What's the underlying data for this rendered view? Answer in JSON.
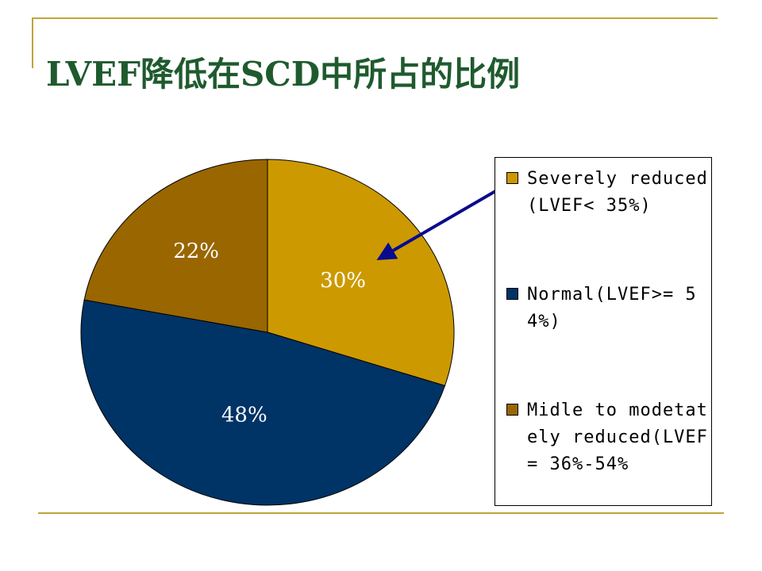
{
  "slide": {
    "title": "LVEF降低在SCD中所占的比例"
  },
  "chart_data": {
    "type": "pie",
    "slices": [
      {
        "label": "Severely reduced(LVEF< 35%)",
        "value": 30,
        "display": "30%",
        "color": "#cc9900"
      },
      {
        "label": "Normal(LVEF>= 54%)",
        "value": 48,
        "display": "48%",
        "color": "#003366"
      },
      {
        "label": "Midle to modetately reduced(LVEF= 36%-54%",
        "value": 22,
        "display": "22%",
        "color": "#996600"
      }
    ],
    "legend_position": "right",
    "annotations": [
      {
        "type": "arrow",
        "from": "legend-item-0",
        "to": "slice-0",
        "color": "#0a0a8c"
      }
    ],
    "label_color": "#ffffff",
    "border_color": "#000000"
  }
}
